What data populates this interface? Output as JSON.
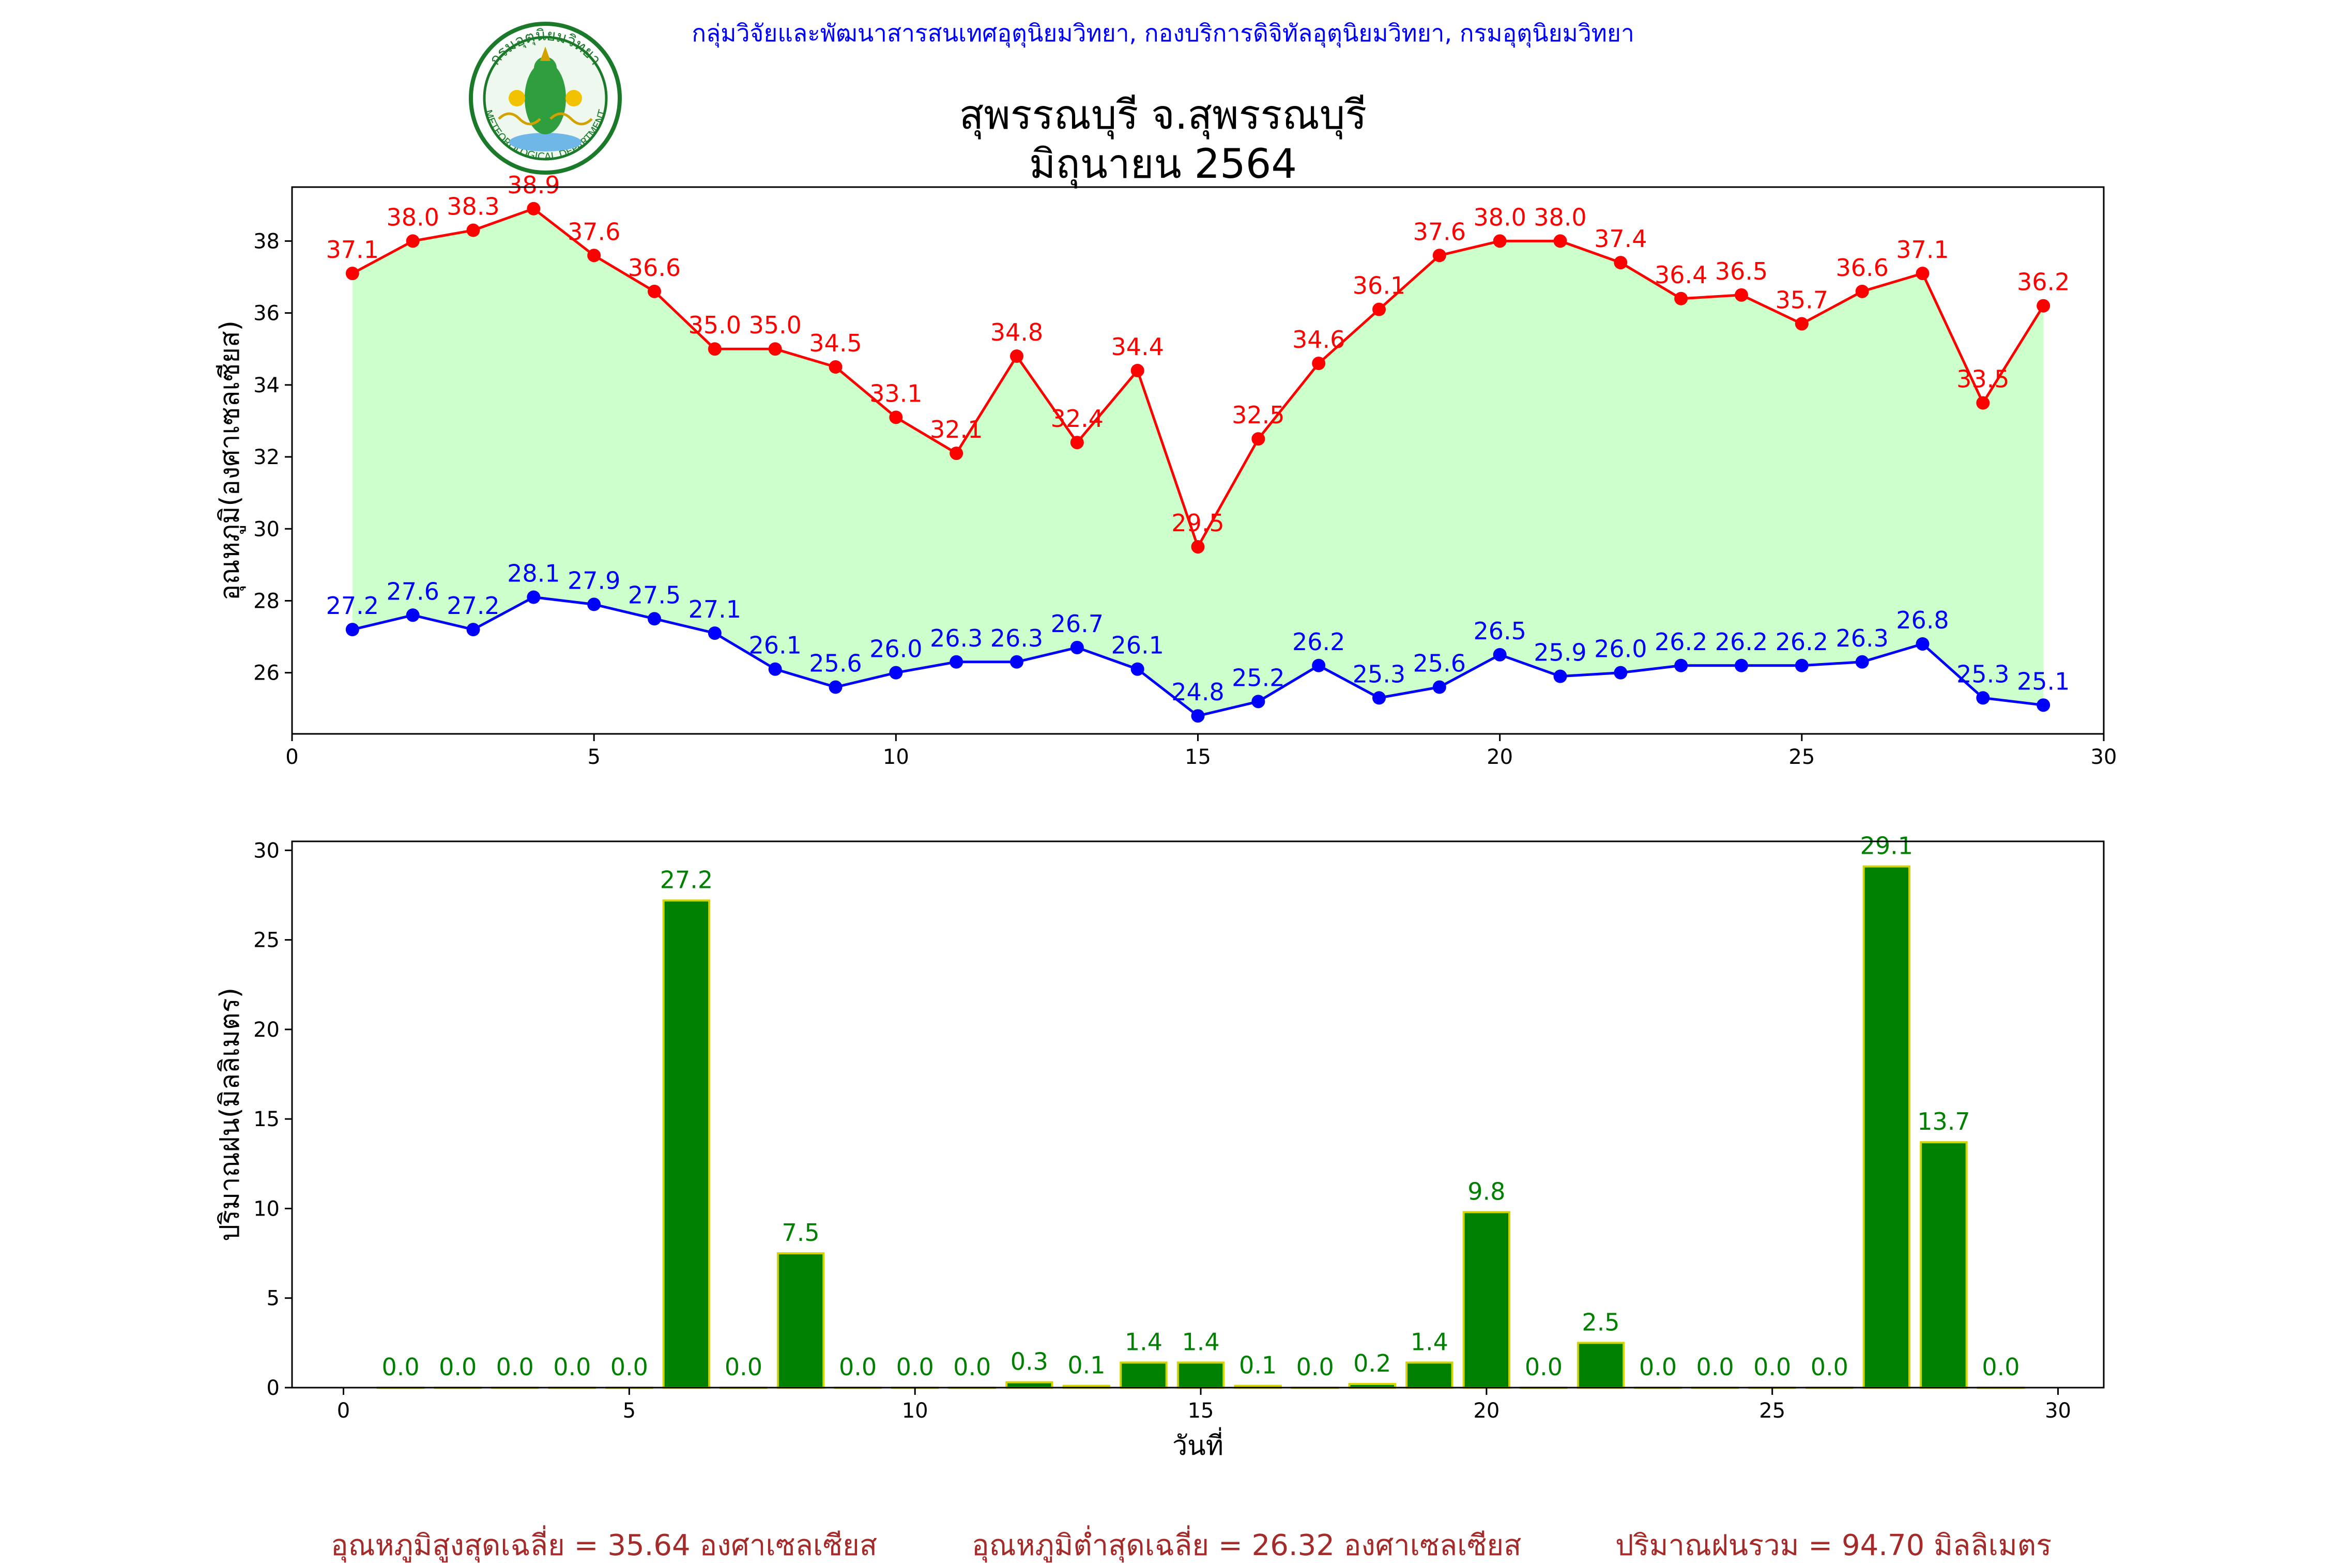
{
  "header": {
    "credit": "กลุ่มวิจัยและพัฒนาสารสนเทศอุตุนิยมวิทยา, กองบริการดิจิทัลอุตุนิยมวิทยา, กรมอุตุนิยมวิทยา",
    "title_line1": "สุพรรณบุรี จ.สุพรรณบุรี",
    "title_line2": "มิถุนายน 2564",
    "logo": {
      "icon": "meteorological-department-seal-icon",
      "ring_color": "#1a7a2a",
      "text_top": "กรมอุตุนิยมวิทยา",
      "text_bottom": "METEOROLOGICAL DEPARTMENT"
    }
  },
  "chart_data": [
    {
      "type": "line",
      "ylabel": "อุณหภูมิ(องศาเซลเซียส)",
      "xlim": [
        0,
        30
      ],
      "ylim": [
        24.3,
        39.5
      ],
      "xticks": [
        0,
        5,
        10,
        15,
        20,
        25,
        30
      ],
      "yticks": [
        26,
        28,
        30,
        32,
        34,
        36,
        38
      ],
      "fill_between": {
        "color": "#ccffcc"
      },
      "x": [
        1,
        2,
        3,
        4,
        5,
        6,
        7,
        8,
        9,
        10,
        11,
        12,
        13,
        14,
        15,
        16,
        17,
        18,
        19,
        20,
        21,
        22,
        23,
        24,
        25,
        26,
        27,
        28,
        29
      ],
      "series": [
        {
          "key": "max",
          "color": "#ff0000",
          "values": [
            37.1,
            38.0,
            38.3,
            38.9,
            37.6,
            36.6,
            35.0,
            35.0,
            34.5,
            33.1,
            32.1,
            34.8,
            32.4,
            34.4,
            29.5,
            32.5,
            34.6,
            36.1,
            37.6,
            38.0,
            38.0,
            37.4,
            36.4,
            36.5,
            35.7,
            36.6,
            37.1,
            33.5,
            36.2
          ]
        },
        {
          "key": "min",
          "color": "#0000ff",
          "values": [
            27.2,
            27.6,
            27.2,
            28.1,
            27.9,
            27.5,
            27.1,
            26.1,
            25.6,
            26.0,
            26.3,
            26.3,
            26.7,
            26.1,
            24.8,
            25.2,
            26.2,
            25.3,
            25.6,
            26.5,
            25.9,
            26.0,
            26.2,
            26.2,
            26.2,
            26.3,
            26.8,
            25.3,
            25.1
          ]
        }
      ]
    },
    {
      "type": "bar",
      "ylabel": "ปริมาณฝน(มิลลิเมตร)",
      "xlabel": "วันที่",
      "xlim": [
        -0.9,
        30.8
      ],
      "ylim": [
        0,
        30.5
      ],
      "xticks": [
        0,
        5,
        10,
        15,
        20,
        25,
        30
      ],
      "yticks": [
        0,
        5,
        10,
        15,
        20,
        25,
        30
      ],
      "bar_color": "#008000",
      "edge_color": "#d4d400",
      "label_color": "#008000",
      "x": [
        1,
        2,
        3,
        4,
        5,
        6,
        7,
        8,
        9,
        10,
        11,
        12,
        13,
        14,
        15,
        16,
        17,
        18,
        19,
        20,
        21,
        22,
        23,
        24,
        25,
        26,
        27,
        28,
        29
      ],
      "values": [
        0.0,
        0.0,
        0.0,
        0.0,
        0.0,
        27.2,
        0.0,
        7.5,
        0.0,
        0.0,
        0.0,
        0.3,
        0.1,
        1.4,
        1.4,
        0.1,
        0.0,
        0.2,
        1.4,
        9.8,
        0.0,
        2.5,
        0.0,
        0.0,
        0.0,
        0.0,
        29.1,
        13.7,
        0.0
      ]
    }
  ],
  "footer": {
    "avg_max": "อุณหภูมิสูงสุดเฉลี่ย = 35.64 องศาเซลเซียส",
    "avg_min": "อุณหภูมิต่ำสุดเฉลี่ย = 26.32 องศาเซลเซียส",
    "total_rain": "ปริมาณฝนรวม = 94.70 มิลลิเมตร",
    "color": "#a52a2a"
  }
}
